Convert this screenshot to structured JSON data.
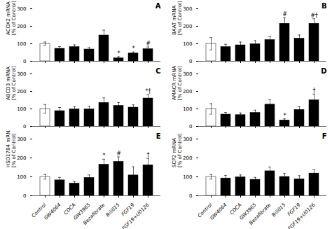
{
  "chart_data": [
    {
      "type": "bar",
      "title": "A",
      "ylabel": "ACOX2 mRNA\n[% of Control]",
      "categories": [
        "Control",
        "GW4064",
        "CDCA",
        "GW3965",
        "Bezafibrate",
        "Bili015",
        "FGF19",
        "FGF19+U0126"
      ],
      "values": [
        100,
        72,
        82,
        68,
        148,
        18,
        45,
        70
      ],
      "errors": [
        10,
        12,
        12,
        10,
        30,
        8,
        8,
        12
      ],
      "colors": [
        "white",
        "black",
        "black",
        "black",
        "black",
        "black",
        "black",
        "black"
      ],
      "annotations": [
        {
          "category": "Bili015",
          "text": "*"
        },
        {
          "category": "FGF19",
          "text": "*"
        },
        {
          "category": "FGF19+U0126",
          "text": "#"
        }
      ],
      "ylim": [
        0,
        300
      ],
      "yticks": [
        0,
        100,
        200,
        300
      ],
      "tick_labels": "y"
    },
    {
      "type": "bar",
      "title": "B",
      "ylabel": "BAAT mRNA\n[% of Control]",
      "categories": [
        "Control",
        "GW4064",
        "CDCA",
        "GW3965",
        "Bezafibrate",
        "Bili015",
        "FGF19",
        "FGF19+U0126"
      ],
      "values": [
        100,
        82,
        92,
        98,
        122,
        215,
        130,
        215
      ],
      "errors": [
        35,
        15,
        18,
        20,
        20,
        35,
        20,
        28
      ],
      "colors": [
        "white",
        "black",
        "black",
        "black",
        "black",
        "black",
        "black",
        "black"
      ],
      "annotations": [
        {
          "category": "Bili015",
          "text": "#"
        },
        {
          "category": "FGF19+U0126",
          "text": "#†"
        }
      ],
      "ylim": [
        0,
        300
      ],
      "yticks": [
        0,
        100,
        200,
        300
      ],
      "tick_labels": "y"
    },
    {
      "type": "bar",
      "title": "C",
      "ylabel": "ABCD3 mRNA\n[% of Control]",
      "categories": [
        "Control",
        "GW4064",
        "CDCA",
        "GW3965",
        "Bezafibrate",
        "Bili015",
        "FGF19",
        "FGF19+U0126"
      ],
      "values": [
        100,
        88,
        98,
        98,
        135,
        118,
        108,
        160
      ],
      "errors": [
        25,
        20,
        15,
        18,
        28,
        18,
        15,
        22
      ],
      "colors": [
        "white",
        "black",
        "black",
        "black",
        "black",
        "black",
        "black",
        "black"
      ],
      "annotations": [
        {
          "category": "FGF19+U0126",
          "text": "*†"
        }
      ],
      "ylim": [
        0,
        300
      ],
      "yticks": [
        0,
        100,
        200,
        300
      ],
      "tick_labels": "y"
    },
    {
      "type": "bar",
      "title": "D",
      "ylabel": "AMACR mRNA\n[% of Control]",
      "categories": [
        "Control",
        "GW4064",
        "CDCA",
        "GW3965",
        "Bezafibrate",
        "Bili015",
        "FGF19",
        "FGF19+U0126"
      ],
      "values": [
        100,
        68,
        65,
        78,
        125,
        35,
        95,
        150
      ],
      "errors": [
        30,
        12,
        12,
        15,
        28,
        8,
        18,
        35
      ],
      "colors": [
        "white",
        "black",
        "black",
        "black",
        "black",
        "black",
        "black",
        "black"
      ],
      "annotations": [
        {
          "category": "Bili015",
          "text": "*"
        },
        {
          "category": "FGF19+U0126",
          "text": "†"
        }
      ],
      "ylim": [
        0,
        300
      ],
      "yticks": [
        0,
        100,
        200,
        300
      ],
      "tick_labels": "y"
    },
    {
      "type": "bar",
      "title": "E",
      "ylabel": "HSD17B4 mRNA\n[% of Control]",
      "categories": [
        "Control",
        "GW4064",
        "CDCA",
        "GW3965",
        "Bezafibrate",
        "Bili015",
        "FGF19",
        "FGF19+U0126"
      ],
      "values": [
        100,
        82,
        65,
        95,
        165,
        180,
        108,
        162
      ],
      "errors": [
        12,
        15,
        10,
        15,
        28,
        25,
        45,
        35
      ],
      "colors": [
        "white",
        "black",
        "black",
        "black",
        "black",
        "black",
        "black",
        "black"
      ],
      "annotations": [
        {
          "category": "Bezafibrate",
          "text": "*"
        },
        {
          "category": "Bili015",
          "text": "#"
        },
        {
          "category": "FGF19+U0126",
          "text": "†"
        }
      ],
      "ylim": [
        0,
        300
      ],
      "yticks": [
        0,
        100,
        200,
        300
      ]
    },
    {
      "type": "bar",
      "title": "F",
      "ylabel": "SCP2 mRNA\n[% of Control]",
      "categories": [
        "Control",
        "GW4064",
        "CDCA",
        "GW3965",
        "Bezafibrate",
        "Bili015",
        "FGF19",
        "FGF19+U0126"
      ],
      "values": [
        100,
        92,
        98,
        85,
        130,
        100,
        88,
        118
      ],
      "errors": [
        12,
        15,
        12,
        12,
        22,
        18,
        18,
        20
      ],
      "colors": [
        "white",
        "black",
        "black",
        "black",
        "black",
        "black",
        "black",
        "black"
      ],
      "ylim": [
        0,
        300
      ],
      "yticks": [
        0,
        100,
        200,
        300
      ]
    }
  ]
}
